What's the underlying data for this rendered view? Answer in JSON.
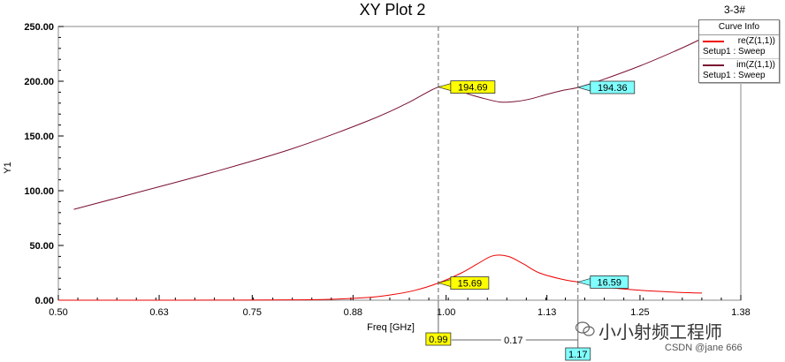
{
  "header": {
    "title": "XY Plot 2",
    "corner_label": "3-3#"
  },
  "legend": {
    "title": "Curve Info",
    "entries": [
      {
        "name": "re(Z(1,1))",
        "setup": "Setup1 : Sweep",
        "color": "#ee0000"
      },
      {
        "name": "im(Z(1,1))",
        "setup": "Setup1 : Sweep",
        "color": "#7a1030"
      }
    ]
  },
  "watermark": {
    "text": "小小射频工程师",
    "credit": "CSDN @jane 666"
  },
  "chart_data": {
    "type": "line",
    "title": "XY Plot 2",
    "xlabel": "Freq [GHz]",
    "ylabel": "Y1",
    "xlim": [
      0.5,
      1.38
    ],
    "ylim": [
      0,
      250
    ],
    "x_ticks": [
      0.5,
      0.63,
      0.75,
      0.88,
      1.0,
      1.13,
      1.25,
      1.38
    ],
    "x_tick_labels": [
      "0.50",
      "0.63",
      "0.75",
      "0.88",
      "1.00",
      "1.13",
      "1.25",
      "1.38"
    ],
    "y_ticks": [
      0,
      50,
      100,
      150,
      200,
      250
    ],
    "y_tick_labels": [
      "0.00",
      "50.00",
      "100.00",
      "150.00",
      "200.00",
      "250.00"
    ],
    "grid": false,
    "legend_position": "top-right",
    "series": [
      {
        "name": "re(Z(1,1))",
        "color": "#ee0000",
        "x": [
          0.5,
          0.6,
          0.7,
          0.8,
          0.85,
          0.9,
          0.93,
          0.96,
          0.99,
          1.02,
          1.04,
          1.06,
          1.08,
          1.1,
          1.12,
          1.15,
          1.17,
          1.2,
          1.25,
          1.3,
          1.33
        ],
        "y": [
          0.0,
          0.0,
          0.1,
          0.3,
          0.8,
          2.5,
          5.0,
          9.0,
          15.69,
          25.0,
          33.0,
          40.5,
          40.0,
          33.0,
          25.0,
          19.0,
          16.59,
          12.5,
          9.0,
          7.2,
          6.5
        ]
      },
      {
        "name": "im(Z(1,1))",
        "color": "#7a1030",
        "x": [
          0.52,
          0.6,
          0.7,
          0.8,
          0.9,
          0.95,
          0.99,
          1.01,
          1.03,
          1.05,
          1.07,
          1.09,
          1.11,
          1.13,
          1.15,
          1.17,
          1.2,
          1.25,
          1.3,
          1.33
        ],
        "y": [
          83.0,
          98.0,
          117.0,
          138.0,
          164.0,
          180.0,
          194.69,
          193.0,
          188.0,
          184.0,
          181.0,
          181.5,
          184.0,
          188.0,
          191.5,
          194.36,
          201.0,
          214.0,
          229.0,
          239.0
        ]
      }
    ],
    "markers": [
      {
        "x": 0.99,
        "label": "0.99",
        "color": "#ffff00"
      },
      {
        "x": 1.17,
        "label": "1.17",
        "color": "#80ffff"
      }
    ],
    "marker_delta": "0.17",
    "annotations": [
      {
        "series": "re(Z(1,1))",
        "x": 0.99,
        "y": 15.69,
        "label": "15.69",
        "color": "#ffff00"
      },
      {
        "series": "re(Z(1,1))",
        "x": 1.17,
        "y": 16.59,
        "label": "16.59",
        "color": "#80ffff"
      },
      {
        "series": "im(Z(1,1))",
        "x": 0.99,
        "y": 194.69,
        "label": "194.69",
        "color": "#ffff00"
      },
      {
        "series": "im(Z(1,1))",
        "x": 1.17,
        "y": 194.36,
        "label": "194.36",
        "color": "#80ffff"
      }
    ]
  }
}
